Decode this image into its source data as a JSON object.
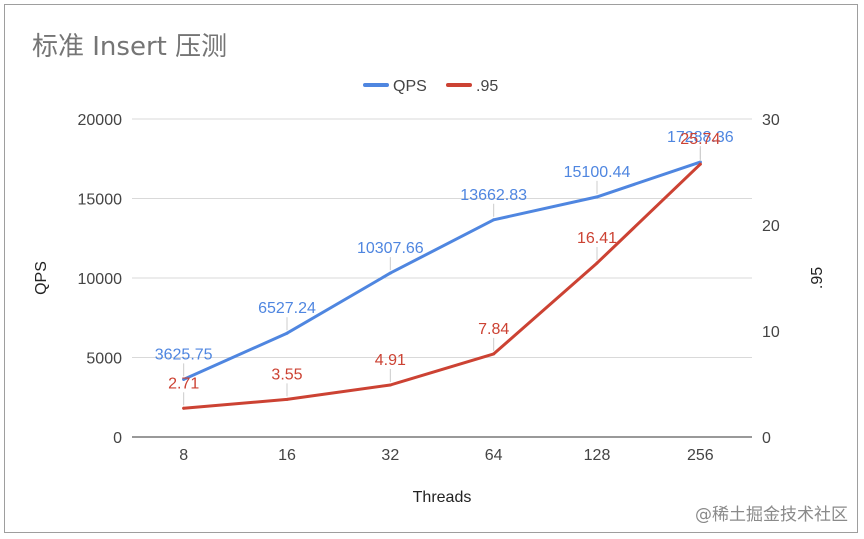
{
  "chart_data": {
    "type": "line",
    "title": "标准 Insert 压测",
    "xlabel": "Threads",
    "ylabel_left": "QPS",
    "ylabel_right": ".95",
    "categories": [
      "8",
      "16",
      "32",
      "64",
      "128",
      "256"
    ],
    "ylim_left": [
      0,
      20000
    ],
    "yticks_left": [
      "0",
      "5000",
      "10000",
      "15000",
      "20000"
    ],
    "ylim_right": [
      0,
      30
    ],
    "yticks_right": [
      "0",
      "10",
      "20",
      "30"
    ],
    "legend_position": "top",
    "grid": true,
    "series": [
      {
        "name": "QPS",
        "axis": "left",
        "color": "#4f86e0",
        "values": [
          3625.75,
          6527.24,
          10307.66,
          13662.83,
          15100.44,
          17288.36
        ],
        "labels": [
          "3625.75",
          "6527.24",
          "10307.66",
          "13662.83",
          "15100.44",
          "17288.36"
        ]
      },
      {
        "name": ".95",
        "axis": "right",
        "color": "#cc4233",
        "values": [
          2.71,
          3.55,
          4.91,
          7.84,
          16.41,
          25.74
        ],
        "labels": [
          "2.71",
          "3.55",
          "4.91",
          "7.84",
          "16.41",
          "25.74"
        ]
      }
    ]
  },
  "watermark": "@稀土掘金技术社区"
}
